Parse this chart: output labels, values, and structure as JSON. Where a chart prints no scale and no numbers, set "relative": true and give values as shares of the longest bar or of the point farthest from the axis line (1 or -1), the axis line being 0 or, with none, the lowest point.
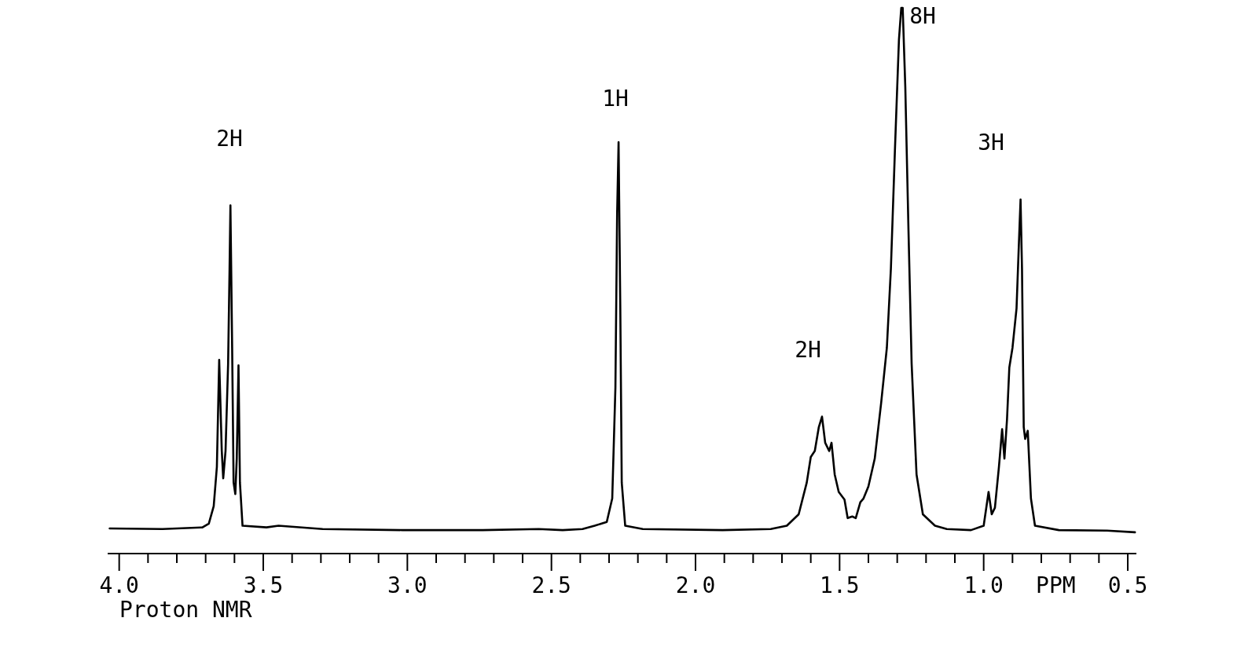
{
  "chart_data": {
    "type": "line",
    "relative": true,
    "xlabel": "PPM",
    "xlim": [
      4.04,
      0.47
    ],
    "xticks": [
      {
        "value": 4.0,
        "label": "4.0"
      },
      {
        "value": 3.9,
        "label": null
      },
      {
        "value": 3.8,
        "label": null
      },
      {
        "value": 3.7,
        "label": null
      },
      {
        "value": 3.6,
        "label": null
      },
      {
        "value": 3.5,
        "label": "3.5"
      },
      {
        "value": 3.4,
        "label": null
      },
      {
        "value": 3.3,
        "label": null
      },
      {
        "value": 3.2,
        "label": null
      },
      {
        "value": 3.1,
        "label": null
      },
      {
        "value": 3.0,
        "label": "3.0"
      },
      {
        "value": 2.9,
        "label": null
      },
      {
        "value": 2.8,
        "label": null
      },
      {
        "value": 2.7,
        "label": null
      },
      {
        "value": 2.6,
        "label": null
      },
      {
        "value": 2.5,
        "label": "2.5"
      },
      {
        "value": 2.4,
        "label": null
      },
      {
        "value": 2.3,
        "label": null
      },
      {
        "value": 2.2,
        "label": null
      },
      {
        "value": 2.1,
        "label": null
      },
      {
        "value": 2.0,
        "label": "2.0"
      },
      {
        "value": 1.9,
        "label": null
      },
      {
        "value": 1.8,
        "label": null
      },
      {
        "value": 1.7,
        "label": null
      },
      {
        "value": 1.6,
        "label": null
      },
      {
        "value": 1.5,
        "label": "1.5"
      },
      {
        "value": 1.4,
        "label": null
      },
      {
        "value": 1.3,
        "label": null
      },
      {
        "value": 1.2,
        "label": null
      },
      {
        "value": 1.1,
        "label": null
      },
      {
        "value": 1.0,
        "label": "1.0"
      },
      {
        "value": 0.9,
        "label": null
      },
      {
        "value": 0.8,
        "label": null
      },
      {
        "value": 0.7,
        "label": null
      },
      {
        "value": 0.6,
        "label": null
      },
      {
        "value": 0.5,
        "label": "0.5"
      }
    ],
    "series": [
      {
        "color": "#000000",
        "x": [
          4.033,
          3.85,
          3.711,
          3.689,
          3.672,
          3.661,
          3.653,
          3.644,
          3.639,
          3.631,
          3.622,
          3.617,
          3.614,
          3.608,
          3.603,
          3.597,
          3.592,
          3.586,
          3.581,
          3.572,
          3.489,
          3.447,
          3.294,
          3.017,
          2.739,
          2.544,
          2.461,
          2.392,
          2.35,
          2.308,
          2.289,
          2.278,
          2.272,
          2.267,
          2.261,
          2.256,
          2.244,
          2.183,
          1.906,
          1.739,
          1.683,
          1.642,
          1.614,
          1.6,
          1.586,
          1.572,
          1.561,
          1.55,
          1.536,
          1.528,
          1.517,
          1.503,
          1.483,
          1.472,
          1.456,
          1.444,
          1.428,
          1.417,
          1.4,
          1.378,
          1.356,
          1.336,
          1.322,
          1.308,
          1.294,
          1.286,
          1.281,
          1.272,
          1.261,
          1.25,
          1.233,
          1.211,
          1.169,
          1.128,
          1.044,
          1.0,
          0.983,
          0.972,
          0.961,
          0.947,
          0.936,
          0.928,
          0.919,
          0.911,
          0.9,
          0.886,
          0.878,
          0.872,
          0.867,
          0.861,
          0.856,
          0.847,
          0.836,
          0.822,
          0.739,
          0.572,
          0.475
        ],
        "values": [
          0.046,
          0.045,
          0.048,
          0.055,
          0.087,
          0.159,
          0.355,
          0.188,
          0.138,
          0.188,
          0.348,
          0.522,
          0.638,
          0.377,
          0.13,
          0.109,
          0.174,
          0.345,
          0.13,
          0.051,
          0.048,
          0.051,
          0.045,
          0.043,
          0.043,
          0.045,
          0.043,
          0.045,
          0.051,
          0.058,
          0.101,
          0.304,
          0.623,
          0.754,
          0.449,
          0.13,
          0.051,
          0.045,
          0.043,
          0.045,
          0.051,
          0.072,
          0.13,
          0.177,
          0.188,
          0.232,
          0.251,
          0.203,
          0.188,
          0.203,
          0.145,
          0.113,
          0.099,
          0.065,
          0.068,
          0.065,
          0.094,
          0.101,
          0.123,
          0.174,
          0.275,
          0.377,
          0.522,
          0.739,
          0.942,
          1.0,
          1.0,
          0.855,
          0.594,
          0.348,
          0.145,
          0.072,
          0.051,
          0.045,
          0.043,
          0.051,
          0.113,
          0.072,
          0.084,
          0.159,
          0.228,
          0.174,
          0.246,
          0.341,
          0.377,
          0.449,
          0.565,
          0.649,
          0.522,
          0.232,
          0.21,
          0.225,
          0.101,
          0.051,
          0.043,
          0.042,
          0.039
        ]
      }
    ],
    "annotations": [
      "2H",
      "1H",
      "2H",
      "8H",
      "3H",
      "Proton NMR"
    ]
  }
}
